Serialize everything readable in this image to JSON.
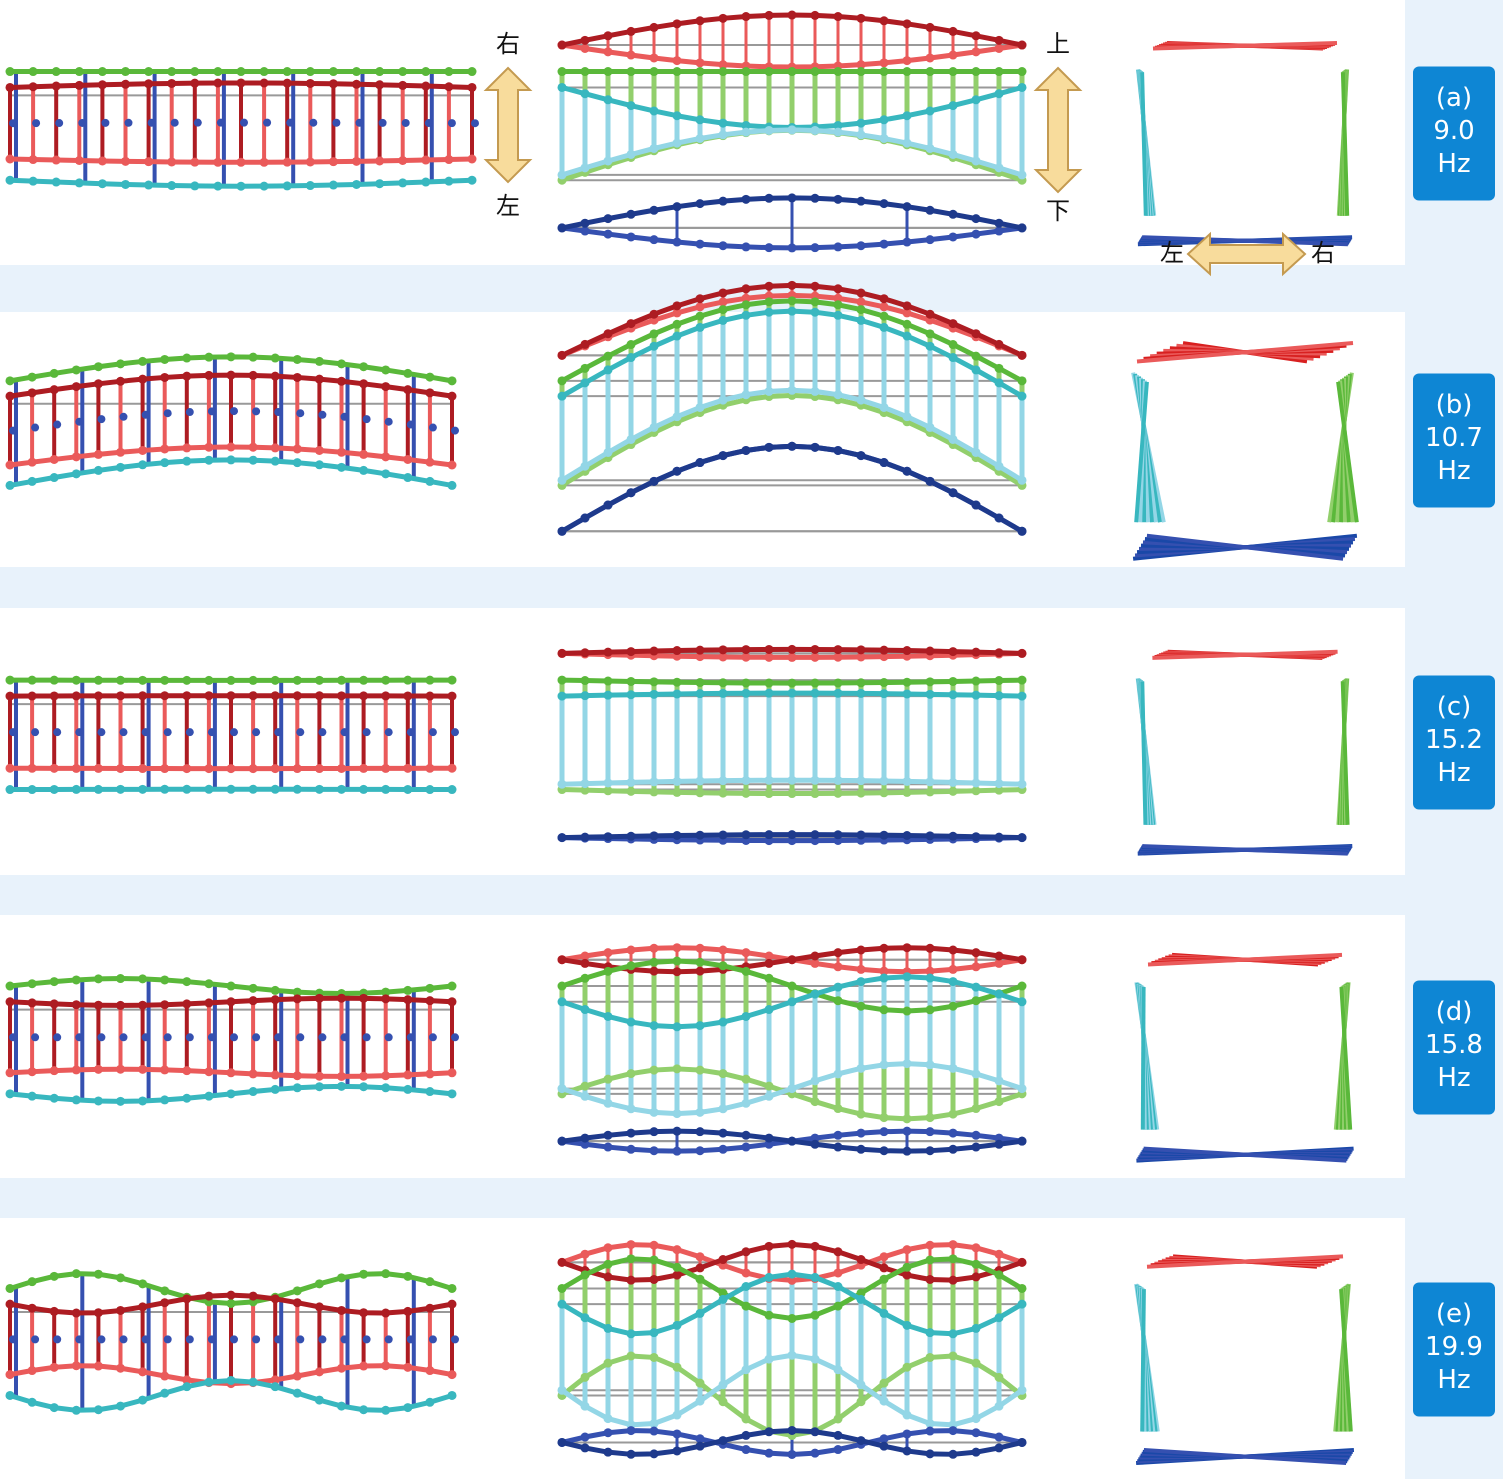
{
  "annotations": {
    "side_view": {
      "top": "右",
      "bottom": "左"
    },
    "front_view": {
      "top": "上",
      "bottom": "下"
    },
    "plan_view": {
      "left": "左",
      "right": "右"
    }
  },
  "rows": [
    {
      "label": "(a)",
      "frequency": "9.0",
      "unit": "Hz"
    },
    {
      "label": "(b)",
      "frequency": "10.7",
      "unit": "Hz"
    },
    {
      "label": "(c)",
      "frequency": "15.2",
      "unit": "Hz"
    },
    {
      "label": "(d)",
      "frequency": "15.8",
      "unit": "Hz"
    },
    {
      "label": "(e)",
      "frequency": "19.9",
      "unit": "Hz"
    }
  ]
}
